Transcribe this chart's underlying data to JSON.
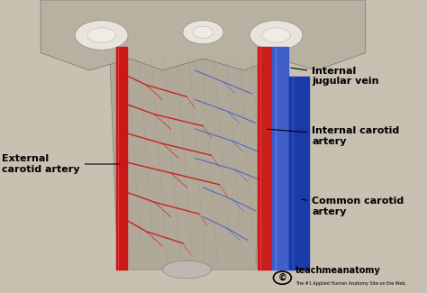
{
  "bg_color": "#c8c0b0",
  "red_color": "#cc1111",
  "blue_color": "#3355cc",
  "dark_blue": "#1133aa",
  "line_color": "#000000",
  "label_internal_jugular": "Internal\njugular vein",
  "label_internal_carotid": "Internal carotid\nartery",
  "label_external_carotid": "External\ncarotid artery",
  "label_common_carotid": "Common carotid\nartery",
  "watermark_text": "teachmeanatomy",
  "watermark_sub": "The #1 Applied Human Anatomy Site on the Web.",
  "skull_color": "#b8b0a0",
  "pharynx_color": "#b0a898",
  "bone_color": "#e8e4dc",
  "red_branches": [
    [
      [
        0.3,
        0.36,
        0.46
      ],
      [
        0.75,
        0.71,
        0.67
      ]
    ],
    [
      [
        0.3,
        0.38,
        0.5
      ],
      [
        0.65,
        0.61,
        0.57
      ]
    ],
    [
      [
        0.3,
        0.4,
        0.52
      ],
      [
        0.55,
        0.51,
        0.47
      ]
    ],
    [
      [
        0.3,
        0.42,
        0.54
      ],
      [
        0.45,
        0.41,
        0.37
      ]
    ],
    [
      [
        0.3,
        0.38,
        0.49
      ],
      [
        0.35,
        0.31,
        0.27
      ]
    ],
    [
      [
        0.31,
        0.36,
        0.45
      ],
      [
        0.25,
        0.21,
        0.17
      ]
    ]
  ],
  "blue_branches": [
    [
      [
        0.48,
        0.55,
        0.62
      ],
      [
        0.76,
        0.72,
        0.68
      ]
    ],
    [
      [
        0.48,
        0.56,
        0.63
      ],
      [
        0.66,
        0.62,
        0.58
      ]
    ],
    [
      [
        0.48,
        0.57,
        0.64
      ],
      [
        0.56,
        0.52,
        0.48
      ]
    ],
    [
      [
        0.48,
        0.58,
        0.65
      ],
      [
        0.46,
        0.42,
        0.38
      ]
    ],
    [
      [
        0.5,
        0.57,
        0.63
      ],
      [
        0.36,
        0.32,
        0.28
      ]
    ],
    [
      [
        0.5,
        0.56,
        0.61
      ],
      [
        0.26,
        0.22,
        0.18
      ]
    ]
  ]
}
